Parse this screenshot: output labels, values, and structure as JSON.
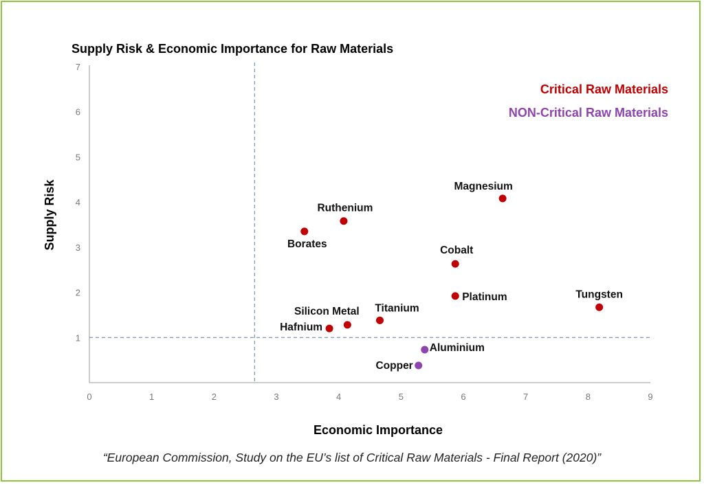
{
  "chart_data": {
    "type": "scatter",
    "title": "Supply Risk & Economic Importance for Raw Materials",
    "xlabel": "Economic Importance",
    "ylabel": "Supply Risk",
    "xlim": [
      0,
      9
    ],
    "ylim": [
      0,
      7
    ],
    "xticks": [
      "0",
      "1",
      "2",
      "3",
      "4",
      "5",
      "6",
      "7",
      "8",
      "9"
    ],
    "yticks": [
      "1",
      "2",
      "3",
      "4",
      "5",
      "6",
      "7"
    ],
    "threshold_x": 2.65,
    "threshold_y": 1.0,
    "grid": false,
    "legend_position": "top-right",
    "series": [
      {
        "name": "Critical Raw Materials",
        "color": "#c00000",
        "points": [
          {
            "label": "Magnesium",
            "x": 6.63,
            "y": 4.08
          },
          {
            "label": "Ruthenium",
            "x": 4.08,
            "y": 3.58
          },
          {
            "label": "Borates",
            "x": 3.45,
            "y": 3.35
          },
          {
            "label": "Cobalt",
            "x": 5.87,
            "y": 2.63
          },
          {
            "label": "Platinum",
            "x": 5.87,
            "y": 1.92
          },
          {
            "label": "Tungsten",
            "x": 8.18,
            "y": 1.67
          },
          {
            "label": "Titanium",
            "x": 4.66,
            "y": 1.38
          },
          {
            "label": "Silicon Metal",
            "x": 4.14,
            "y": 1.28
          },
          {
            "label": "Hafnium",
            "x": 3.85,
            "y": 1.2
          }
        ]
      },
      {
        "name": "NON-Critical Raw Materials",
        "color": "#8e44ad",
        "points": [
          {
            "label": "Aluminium",
            "x": 5.38,
            "y": 0.73
          },
          {
            "label": "Copper",
            "x": 5.28,
            "y": 0.38
          }
        ]
      }
    ]
  },
  "caption": "“European Commission, Study on the EU’s list of Critical Raw Materials - Final Report (2020)”"
}
